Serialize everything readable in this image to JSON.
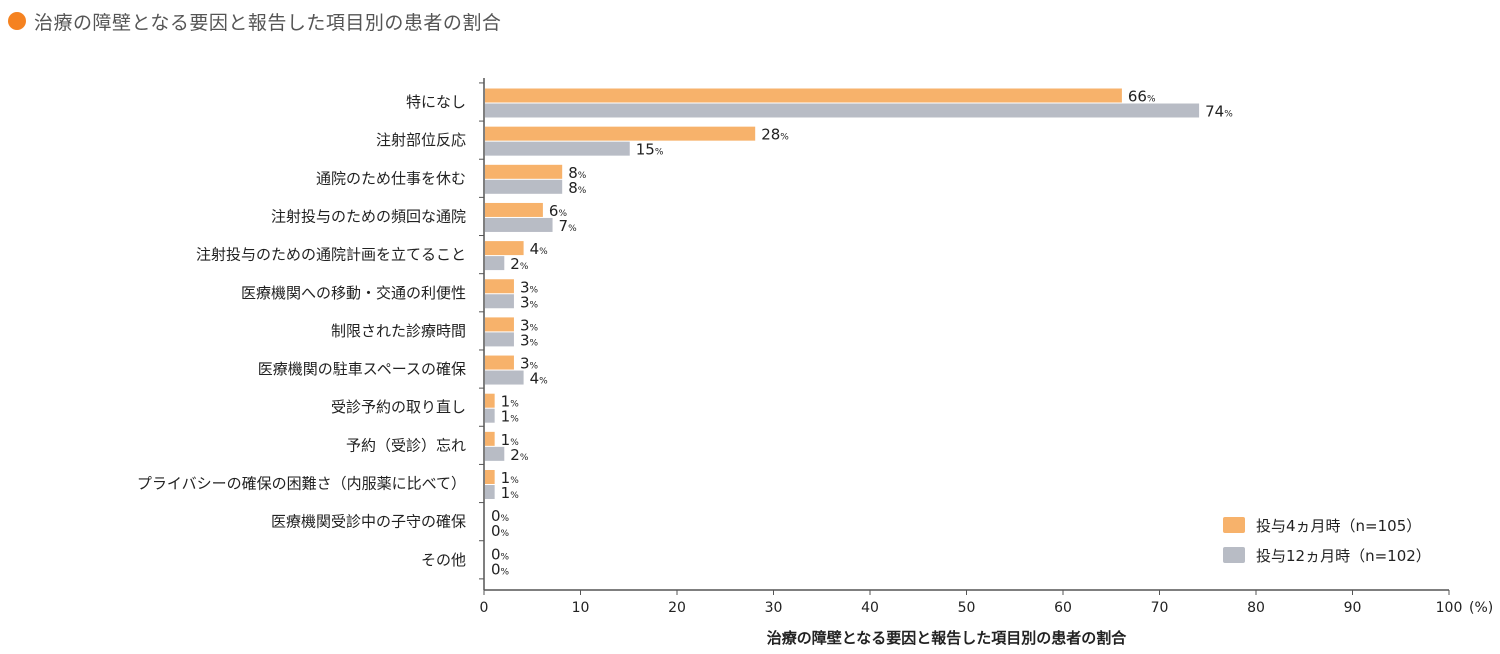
{
  "title": "治療の障壁となる要因と報告した項目別の患者の割合",
  "colors": {
    "accent": "#F58220",
    "series_a": "#F7B26B",
    "series_b": "#B8BCC5",
    "axis": "#555555"
  },
  "chart_data": {
    "type": "bar",
    "orientation": "horizontal",
    "title": "治療の障壁となる要因と報告した項目別の患者の割合",
    "xlabel": "治療の障壁となる要因と報告した項目別の患者の割合",
    "xunit": "(%)",
    "xlim": [
      0,
      100
    ],
    "xticks": [
      "0",
      "10",
      "20",
      "30",
      "40",
      "50",
      "60",
      "70",
      "80",
      "90",
      "100"
    ],
    "value_suffix": "%",
    "legend_position": "bottom-right",
    "categories": [
      "特になし",
      "注射部位反応",
      "通院のため仕事を休む",
      "注射投与のための頻回な通院",
      "注射投与のための通院計画を立てること",
      "医療機関への移動・交通の利便性",
      "制限された診療時間",
      "医療機関の駐車スペースの確保",
      "受診予約の取り直し",
      "予約（受診）忘れ",
      "プライバシーの確保の困難さ（内服薬に比べて）",
      "医療機関受診中の子守の確保",
      "その他"
    ],
    "series": [
      {
        "name": "投与4ヵ月時（n=105）",
        "color": "#F7B26B",
        "values": [
          66,
          28,
          8,
          6,
          4,
          3,
          3,
          3,
          1,
          1,
          1,
          0,
          0
        ]
      },
      {
        "name": "投与12ヵ月時（n=102）",
        "color": "#B8BCC5",
        "values": [
          74,
          15,
          8,
          7,
          2,
          3,
          3,
          4,
          1,
          2,
          1,
          0,
          0
        ]
      }
    ]
  }
}
